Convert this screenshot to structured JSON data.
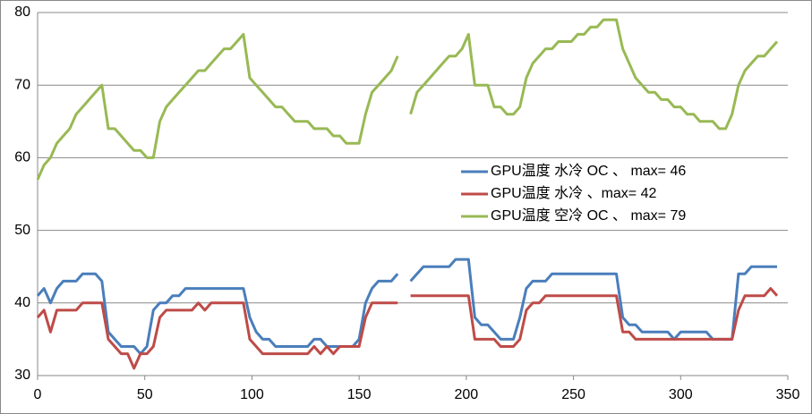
{
  "chart_data": {
    "type": "line",
    "x": [
      0,
      3,
      6,
      9,
      12,
      15,
      18,
      21,
      24,
      27,
      30,
      33,
      36,
      39,
      42,
      45,
      48,
      51,
      54,
      57,
      60,
      63,
      66,
      69,
      72,
      75,
      78,
      81,
      84,
      87,
      90,
      93,
      96,
      99,
      102,
      105,
      108,
      111,
      114,
      117,
      120,
      123,
      126,
      129,
      132,
      135,
      138,
      141,
      144,
      147,
      150,
      153,
      156,
      159,
      162,
      165,
      168,
      171,
      174,
      177,
      180,
      183,
      186,
      189,
      192,
      195,
      198,
      201,
      204,
      207,
      210,
      213,
      216,
      219,
      222,
      225,
      228,
      231,
      234,
      237,
      240,
      243,
      246,
      249,
      252,
      255,
      258,
      261,
      264,
      267,
      270,
      273,
      276,
      279,
      282,
      285,
      288,
      291,
      294,
      297,
      300,
      303,
      306,
      309,
      312,
      315,
      318,
      321,
      324,
      327,
      330,
      333,
      336,
      339,
      342,
      345
    ],
    "series": [
      {
        "name": "GPU温度 水冷 OC 、 max= 46",
        "color": "#4a7ebb",
        "values": [
          41,
          42,
          40,
          42,
          43,
          43,
          43,
          44,
          44,
          44,
          43,
          36,
          35,
          34,
          34,
          34,
          33,
          34,
          39,
          40,
          40,
          41,
          41,
          42,
          42,
          42,
          42,
          42,
          42,
          42,
          42,
          42,
          42,
          38,
          36,
          35,
          35,
          34,
          34,
          34,
          34,
          34,
          34,
          35,
          35,
          34,
          34,
          34,
          34,
          34,
          35,
          40,
          42,
          43,
          43,
          43,
          44,
          null,
          43,
          44,
          45,
          45,
          45,
          45,
          45,
          46,
          46,
          46,
          38,
          37,
          37,
          36,
          35,
          35,
          35,
          38,
          42,
          43,
          43,
          43,
          44,
          44,
          44,
          44,
          44,
          44,
          44,
          44,
          44,
          44,
          44,
          38,
          37,
          37,
          36,
          36,
          36,
          36,
          36,
          35,
          36,
          36,
          36,
          36,
          36,
          35,
          35,
          35,
          35,
          44,
          44,
          45,
          45,
          45,
          45,
          45
        ]
      },
      {
        "name": "GPU温度 水冷 、max= 42",
        "color": "#be4b48",
        "values": [
          38,
          39,
          36,
          39,
          39,
          39,
          39,
          40,
          40,
          40,
          40,
          35,
          34,
          33,
          33,
          31,
          33,
          33,
          34,
          38,
          39,
          39,
          39,
          39,
          39,
          40,
          39,
          40,
          40,
          40,
          40,
          40,
          40,
          35,
          34,
          33,
          33,
          33,
          33,
          33,
          33,
          33,
          33,
          34,
          33,
          34,
          33,
          34,
          34,
          34,
          34,
          38,
          40,
          40,
          40,
          40,
          40,
          null,
          41,
          41,
          41,
          41,
          41,
          41,
          41,
          41,
          41,
          41,
          35,
          35,
          35,
          35,
          34,
          34,
          34,
          35,
          39,
          40,
          40,
          41,
          41,
          41,
          41,
          41,
          41,
          41,
          41,
          41,
          41,
          41,
          41,
          36,
          36,
          35,
          35,
          35,
          35,
          35,
          35,
          35,
          35,
          35,
          35,
          35,
          35,
          35,
          35,
          35,
          35,
          39,
          41,
          41,
          41,
          41,
          42,
          41
        ]
      },
      {
        "name": "GPU温度 空冷 OC 、 max= 79",
        "color": "#98b954",
        "values": [
          57,
          59,
          60,
          62,
          63,
          64,
          66,
          67,
          68,
          69,
          70,
          64,
          64,
          63,
          62,
          61,
          61,
          60,
          60,
          65,
          67,
          68,
          69,
          70,
          71,
          72,
          72,
          73,
          74,
          75,
          75,
          76,
          77,
          71,
          70,
          69,
          68,
          67,
          67,
          66,
          65,
          65,
          65,
          64,
          64,
          64,
          63,
          63,
          62,
          62,
          62,
          66,
          69,
          70,
          71,
          72,
          74,
          null,
          66,
          69,
          70,
          71,
          72,
          73,
          74,
          74,
          75,
          77,
          70,
          70,
          70,
          67,
          67,
          66,
          66,
          67,
          71,
          73,
          74,
          75,
          75,
          76,
          76,
          76,
          77,
          77,
          78,
          78,
          79,
          79,
          79,
          75,
          73,
          71,
          70,
          69,
          69,
          68,
          68,
          67,
          67,
          66,
          66,
          65,
          65,
          65,
          64,
          64,
          66,
          70,
          72,
          73,
          74,
          74,
          75,
          76
        ]
      }
    ],
    "xlim": [
      0,
      350
    ],
    "xticks": [
      0,
      50,
      100,
      150,
      200,
      250,
      300,
      350
    ],
    "ylim": [
      30,
      80
    ],
    "yticks": [
      30,
      40,
      50,
      60,
      70,
      80
    ],
    "grid": true,
    "legend": "right"
  }
}
